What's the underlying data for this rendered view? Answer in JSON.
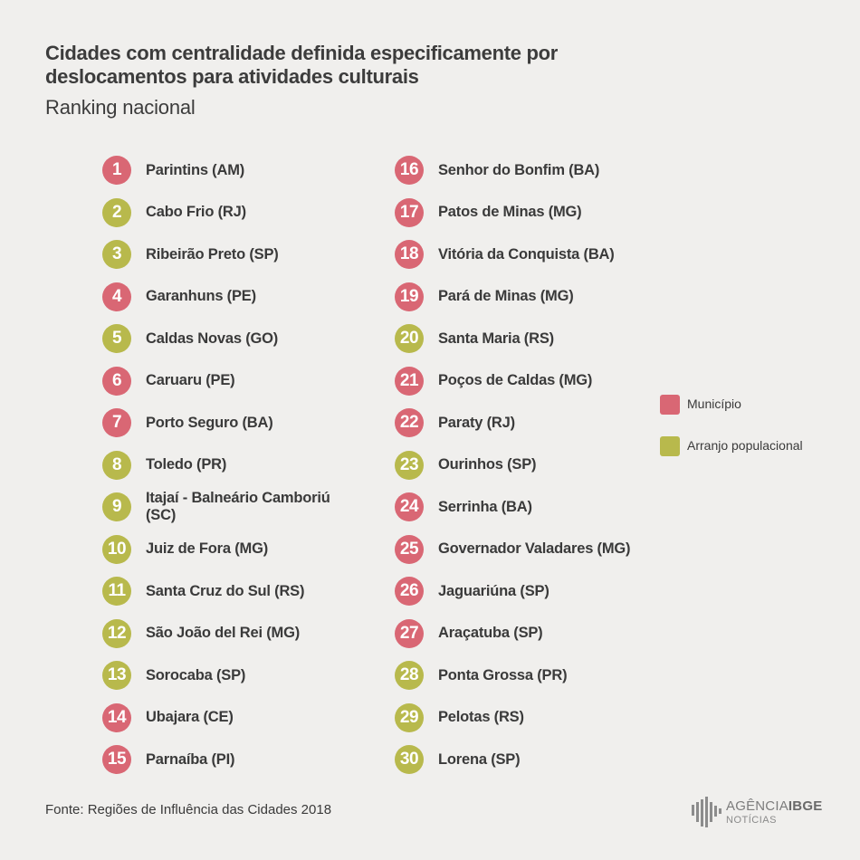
{
  "title": "Cidades com centralidade definida especificamente por deslocamentos para atividades culturais",
  "subtitle": "Ranking nacional",
  "colors": {
    "municipio": "#d96774",
    "arranjo": "#b8b94c",
    "background": "#f0efed"
  },
  "legend": [
    {
      "key": "municipio",
      "label": "Município"
    },
    {
      "key": "arranjo",
      "label": "Arranjo populacional"
    }
  ],
  "source": "Fonte: Regiões de Influência das Cidades 2018",
  "logo": {
    "brand": "AGÊNCIA",
    "brand_bold": "IBGE",
    "sub": "NOTÍCIAS",
    "icon": "ibge-bars-icon"
  },
  "chart_data": {
    "type": "table",
    "columns": [
      "rank",
      "city",
      "type"
    ],
    "rows": [
      {
        "rank": "1",
        "city": "Parintins (AM)",
        "type": "municipio"
      },
      {
        "rank": "2",
        "city": "Cabo Frio (RJ)",
        "type": "arranjo"
      },
      {
        "rank": "3",
        "city": "Ribeirão Preto (SP)",
        "type": "arranjo"
      },
      {
        "rank": "4",
        "city": "Garanhuns (PE)",
        "type": "municipio"
      },
      {
        "rank": "5",
        "city": "Caldas Novas (GO)",
        "type": "arranjo"
      },
      {
        "rank": "6",
        "city": "Caruaru (PE)",
        "type": "municipio"
      },
      {
        "rank": "7",
        "city": "Porto Seguro (BA)",
        "type": "municipio"
      },
      {
        "rank": "8",
        "city": "Toledo (PR)",
        "type": "arranjo"
      },
      {
        "rank": "9",
        "city": "Itajaí - Balneário Camboriú (SC)",
        "type": "arranjo"
      },
      {
        "rank": "10",
        "city": "Juiz de Fora (MG)",
        "type": "arranjo"
      },
      {
        "rank": "11",
        "city": "Santa Cruz do Sul (RS)",
        "type": "arranjo"
      },
      {
        "rank": "12",
        "city": "São João del Rei (MG)",
        "type": "arranjo"
      },
      {
        "rank": "13",
        "city": "Sorocaba (SP)",
        "type": "arranjo"
      },
      {
        "rank": "14",
        "city": "Ubajara (CE)",
        "type": "municipio"
      },
      {
        "rank": "15",
        "city": "Parnaíba (PI)",
        "type": "municipio"
      },
      {
        "rank": "16",
        "city": "Senhor do Bonfim (BA)",
        "type": "municipio"
      },
      {
        "rank": "17",
        "city": "Patos de Minas (MG)",
        "type": "municipio"
      },
      {
        "rank": "18",
        "city": "Vitória da Conquista (BA)",
        "type": "municipio"
      },
      {
        "rank": "19",
        "city": "Pará de Minas (MG)",
        "type": "municipio"
      },
      {
        "rank": "20",
        "city": "Santa Maria (RS)",
        "type": "arranjo"
      },
      {
        "rank": "21",
        "city": "Poços de Caldas (MG)",
        "type": "municipio"
      },
      {
        "rank": "22",
        "city": "Paraty (RJ)",
        "type": "municipio"
      },
      {
        "rank": "23",
        "city": "Ourinhos (SP)",
        "type": "arranjo"
      },
      {
        "rank": "24",
        "city": "Serrinha (BA)",
        "type": "municipio"
      },
      {
        "rank": "25",
        "city": "Governador Valadares (MG)",
        "type": "municipio"
      },
      {
        "rank": "26",
        "city": "Jaguariúna (SP)",
        "type": "municipio"
      },
      {
        "rank": "27",
        "city": "Araçatuba (SP)",
        "type": "municipio"
      },
      {
        "rank": "28",
        "city": "Ponta Grossa (PR)",
        "type": "arranjo"
      },
      {
        "rank": "29",
        "city": "Pelotas (RS)",
        "type": "arranjo"
      },
      {
        "rank": "30",
        "city": "Lorena (SP)",
        "type": "arranjo"
      }
    ]
  }
}
